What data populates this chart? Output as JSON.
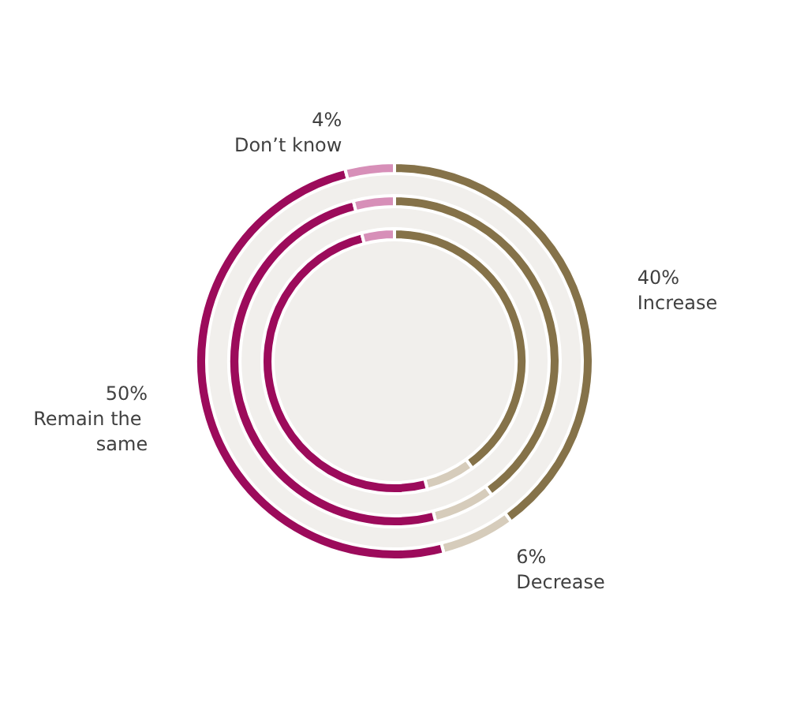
{
  "chart_data": {
    "type": "donut",
    "categories": [
      "Increase",
      "Decrease",
      "Remain the same",
      "Don’t know"
    ],
    "colors": [
      "#857249",
      "#d6ccbb",
      "#9c0b5b",
      "#d78fb8"
    ],
    "series": [
      {
        "values": [
          40,
          6,
          50,
          4
        ],
        "value_labels": [
          "40%",
          "6%",
          "50%",
          "4%"
        ]
      },
      {
        "values": [
          40,
          6,
          50,
          4
        ]
      },
      {
        "values": [
          40,
          6,
          50,
          4
        ]
      }
    ],
    "legend": false
  }
}
